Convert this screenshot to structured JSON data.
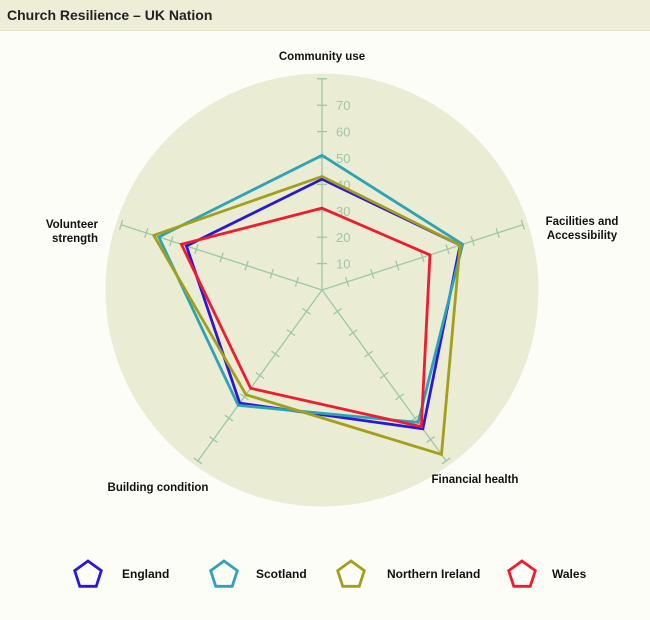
{
  "title": "Church Resilience – UK Nation",
  "chart_data": {
    "type": "radar",
    "title": "Church Resilience – UK Nation",
    "axes": [
      "Community use",
      "Facilities and Accessibility",
      "Financial health",
      "Building condition",
      "Volunteer strength"
    ],
    "radial_ticks": [
      10,
      20,
      30,
      40,
      50,
      60,
      70
    ],
    "rlim": [
      0,
      80
    ],
    "legend_position": "bottom",
    "series": [
      {
        "name": "England",
        "color": "#2b17d8",
        "values": [
          42,
          55,
          65,
          53,
          54
        ]
      },
      {
        "name": "Scotland",
        "color": "#2ea3b4",
        "values": [
          51,
          56,
          62,
          54,
          65
        ]
      },
      {
        "name": "Northern Ireland",
        "color": "#a39e1c",
        "values": [
          43,
          55,
          77,
          49,
          67
        ]
      },
      {
        "name": "Wales",
        "color": "#ee1c2e",
        "values": [
          31,
          43,
          64,
          46,
          56
        ]
      }
    ]
  }
}
